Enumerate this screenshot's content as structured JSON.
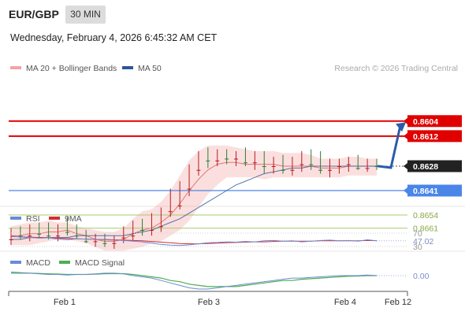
{
  "header": {
    "pair": "EUR/GBP",
    "timeframe": "30 MIN",
    "datetime": "Wednesday, February 4, 2026 6:45:32 AM CET"
  },
  "legend": {
    "bollinger": "MA 20 + Bollinger Bands",
    "ma50": "MA 50",
    "copyright": "Research © 2026 Trading Central"
  },
  "colors": {
    "bollinger": "#f4a3a3",
    "ma50": "#2f5597",
    "resistance": "#a7c971",
    "pivot": "#4a86e8",
    "support": "#e00000",
    "current": "#222222",
    "candle_up": "#2e7d32",
    "candle_down": "#b71c1c",
    "rsi": "#6a8ad6",
    "rsi_ma": "#d32f2f",
    "macd": "#6a8ad6",
    "macd_signal": "#4caf50",
    "arrow": "#2a5caa"
  },
  "chart_data": [
    {
      "type": "line",
      "subtype": "candlestick",
      "x_ticks": [
        "Feb 1",
        "Feb 3",
        "Feb 4",
        "Feb 12"
      ],
      "ylim": [
        0.86,
        0.868
      ],
      "levels": [
        {
          "name": "resistance-2",
          "value": 0.8661,
          "label": "0.8661",
          "style": "line"
        },
        {
          "name": "resistance-1",
          "value": 0.8654,
          "label": "0.8654",
          "style": "line"
        },
        {
          "name": "pivot",
          "value": 0.8641,
          "label": "0.8641",
          "style": "tag"
        },
        {
          "name": "current",
          "value": 0.8628,
          "label": "0.8628",
          "style": "tag"
        },
        {
          "name": "support-1",
          "value": 0.8612,
          "label": "0.8612",
          "style": "tag"
        },
        {
          "name": "support-2",
          "value": 0.8604,
          "label": "0.8604",
          "style": "tag"
        }
      ],
      "forecast": {
        "from": 0.8628,
        "to": 0.8608
      },
      "bollinger": {
        "mid": [
          0.8665,
          0.8665,
          0.8664,
          0.8664,
          0.8663,
          0.8663,
          0.8662,
          0.8664,
          0.8665,
          0.8667,
          0.8668,
          0.8668,
          0.8667,
          0.8664,
          0.8662,
          0.8661,
          0.8658,
          0.8654,
          0.8648,
          0.8641,
          0.8635,
          0.863,
          0.8627,
          0.8626,
          0.8626,
          0.8627,
          0.8627,
          0.8627,
          0.8627,
          0.8628,
          0.8628,
          0.8628,
          0.8628,
          0.8629,
          0.8629,
          0.8629,
          0.8628,
          0.8628,
          0.8628,
          0.8628
        ],
        "upper": [
          0.867,
          0.867,
          0.867,
          0.8669,
          0.8668,
          0.8667,
          0.8667,
          0.8668,
          0.8669,
          0.8671,
          0.8673,
          0.8673,
          0.8673,
          0.8672,
          0.8671,
          0.8669,
          0.8668,
          0.8665,
          0.8662,
          0.8657,
          0.865,
          0.8643,
          0.8638,
          0.8634,
          0.8634,
          0.8634,
          0.8634,
          0.8635,
          0.8634,
          0.8634,
          0.8634,
          0.8634,
          0.8634,
          0.8634,
          0.8634,
          0.8634,
          0.8633,
          0.8633,
          0.8633,
          0.8633
        ],
        "lower": [
          0.866,
          0.8659,
          0.8658,
          0.8658,
          0.8657,
          0.8658,
          0.8658,
          0.866,
          0.8661,
          0.8662,
          0.8663,
          0.8663,
          0.8661,
          0.8656,
          0.8652,
          0.8651,
          0.8647,
          0.8641,
          0.8633,
          0.8625,
          0.862,
          0.8617,
          0.8617,
          0.8617,
          0.8618,
          0.8619,
          0.862,
          0.862,
          0.862,
          0.8621,
          0.8621,
          0.8621,
          0.8622,
          0.8624,
          0.8624,
          0.8624,
          0.8623,
          0.8623,
          0.8624,
          0.8624
        ]
      },
      "ma50": [
        0.8667,
        0.8667,
        0.8666,
        0.8666,
        0.8666,
        0.8666,
        0.8666,
        0.8665,
        0.8665,
        0.8665,
        0.8665,
        0.8665,
        0.8665,
        0.8664,
        0.8663,
        0.8662,
        0.866,
        0.8658,
        0.8656,
        0.8653,
        0.865,
        0.8647,
        0.8644,
        0.8641,
        0.8638,
        0.8636,
        0.8634,
        0.8632,
        0.8631,
        0.863,
        0.8629,
        0.8629,
        0.8628,
        0.8628,
        0.8628,
        0.8628,
        0.8628,
        0.8628,
        0.8628,
        0.8628
      ],
      "candles": {
        "open": [
          0.8667,
          0.8664,
          0.8665,
          0.8662,
          0.8664,
          0.8665,
          0.8661,
          0.8663,
          0.8665,
          0.8668,
          0.8667,
          0.8669,
          0.8666,
          0.8665,
          0.866,
          0.8662,
          0.866,
          0.8652,
          0.8649,
          0.864,
          0.863,
          0.8624,
          0.8625,
          0.8623,
          0.8624,
          0.8622,
          0.8626,
          0.8623,
          0.8628,
          0.8627,
          0.863,
          0.8627,
          0.8622,
          0.8627,
          0.863,
          0.8628,
          0.8627,
          0.8625,
          0.8629,
          0.8627
        ],
        "high": [
          0.867,
          0.8667,
          0.8668,
          0.8666,
          0.8667,
          0.8668,
          0.8665,
          0.8667,
          0.8669,
          0.8671,
          0.8671,
          0.8672,
          0.8669,
          0.8668,
          0.8665,
          0.8665,
          0.8663,
          0.8655,
          0.8651,
          0.8644,
          0.8633,
          0.8629,
          0.8628,
          0.8627,
          0.8628,
          0.8628,
          0.863,
          0.8632,
          0.8632,
          0.8632,
          0.8633,
          0.8631,
          0.863,
          0.8632,
          0.8634,
          0.8632,
          0.8631,
          0.863,
          0.8631,
          0.863
        ],
        "low": [
          0.8661,
          0.866,
          0.8659,
          0.8658,
          0.8658,
          0.8659,
          0.8655,
          0.8659,
          0.8662,
          0.8664,
          0.8664,
          0.8665,
          0.866,
          0.8657,
          0.8656,
          0.8653,
          0.865,
          0.864,
          0.8636,
          0.8627,
          0.862,
          0.8618,
          0.8619,
          0.8619,
          0.862,
          0.8618,
          0.862,
          0.862,
          0.8623,
          0.8622,
          0.8623,
          0.862,
          0.8619,
          0.862,
          0.8624,
          0.8624,
          0.8623,
          0.8622,
          0.8624,
          0.8624
        ],
        "close": [
          0.8664,
          0.8665,
          0.8662,
          0.8664,
          0.8665,
          0.8661,
          0.8663,
          0.8665,
          0.8668,
          0.8667,
          0.8669,
          0.8666,
          0.8665,
          0.866,
          0.8662,
          0.866,
          0.8652,
          0.8649,
          0.864,
          0.863,
          0.8624,
          0.8625,
          0.8623,
          0.8624,
          0.8622,
          0.8626,
          0.8623,
          0.8628,
          0.8627,
          0.863,
          0.8627,
          0.8622,
          0.8627,
          0.863,
          0.8628,
          0.8627,
          0.8625,
          0.8629,
          0.8627,
          0.8628
        ]
      }
    },
    {
      "type": "line",
      "title": "RSI",
      "series": [
        {
          "name": "RSI",
          "values": [
            62,
            58,
            57,
            55,
            56,
            52,
            50,
            53,
            52,
            51,
            50,
            49,
            48,
            46,
            44,
            40,
            36,
            34,
            33,
            35,
            38,
            41,
            42,
            44,
            43,
            45,
            44,
            47,
            48,
            46,
            47,
            44,
            46,
            48,
            49,
            47,
            48,
            46,
            50,
            47.02
          ]
        },
        {
          "name": "9MA",
          "values": [
            60,
            59,
            58,
            57,
            56,
            55,
            54,
            53,
            52,
            51,
            51,
            50,
            49,
            48,
            47,
            45,
            43,
            41,
            39,
            38,
            38,
            39,
            40,
            41,
            42,
            43,
            44,
            44,
            45,
            46,
            46,
            46,
            46,
            47,
            47,
            47,
            47,
            47,
            48,
            47.5
          ]
        }
      ],
      "levels": [
        {
          "label": "70",
          "value": 70
        },
        {
          "label": "30",
          "value": 30
        }
      ],
      "current_label": "47.02",
      "ylim": [
        25,
        75
      ]
    },
    {
      "type": "line",
      "title": "MACD",
      "series": [
        {
          "name": "MACD",
          "values": [
            0.0003,
            0.00025,
            0.0002,
            0.00015,
            0.0001,
            0.0001,
            5e-05,
            0.0001,
            0.0001,
            0.00015,
            0.0002,
            0.0002,
            0.00015,
            0.0,
            -0.0001,
            -0.0002,
            -0.0004,
            -0.0006,
            -0.0008,
            -0.001,
            -0.0011,
            -0.0011,
            -0.001,
            -0.0009,
            -0.0008,
            -0.0007,
            -0.0006,
            -0.0005,
            -0.0004,
            -0.0003,
            -0.0002,
            -0.0002,
            -0.00015,
            -0.0001,
            -5e-05,
            0.0,
            0.0,
            0.0,
            5e-05,
            0.0
          ]
        },
        {
          "name": "MACD Signal",
          "values": [
            0.0002,
            0.0002,
            0.0002,
            0.00018,
            0.00015,
            0.00013,
            0.0001,
            0.0001,
            0.0001,
            0.00012,
            0.00015,
            0.00017,
            0.00016,
            0.0001,
            0.0,
            -0.0001,
            -0.0002,
            -0.0004,
            -0.0005,
            -0.0007,
            -0.0008,
            -0.0009,
            -0.0009,
            -0.0009,
            -0.0009,
            -0.0008,
            -0.0007,
            -0.0006,
            -0.0005,
            -0.0004,
            -0.0004,
            -0.0003,
            -0.00025,
            -0.0002,
            -0.00015,
            -0.0001,
            -5e-05,
            -3e-05,
            0.0,
            0.0
          ]
        }
      ],
      "current_label": "0.00",
      "ylim": [
        -0.0013,
        0.0005
      ]
    }
  ]
}
